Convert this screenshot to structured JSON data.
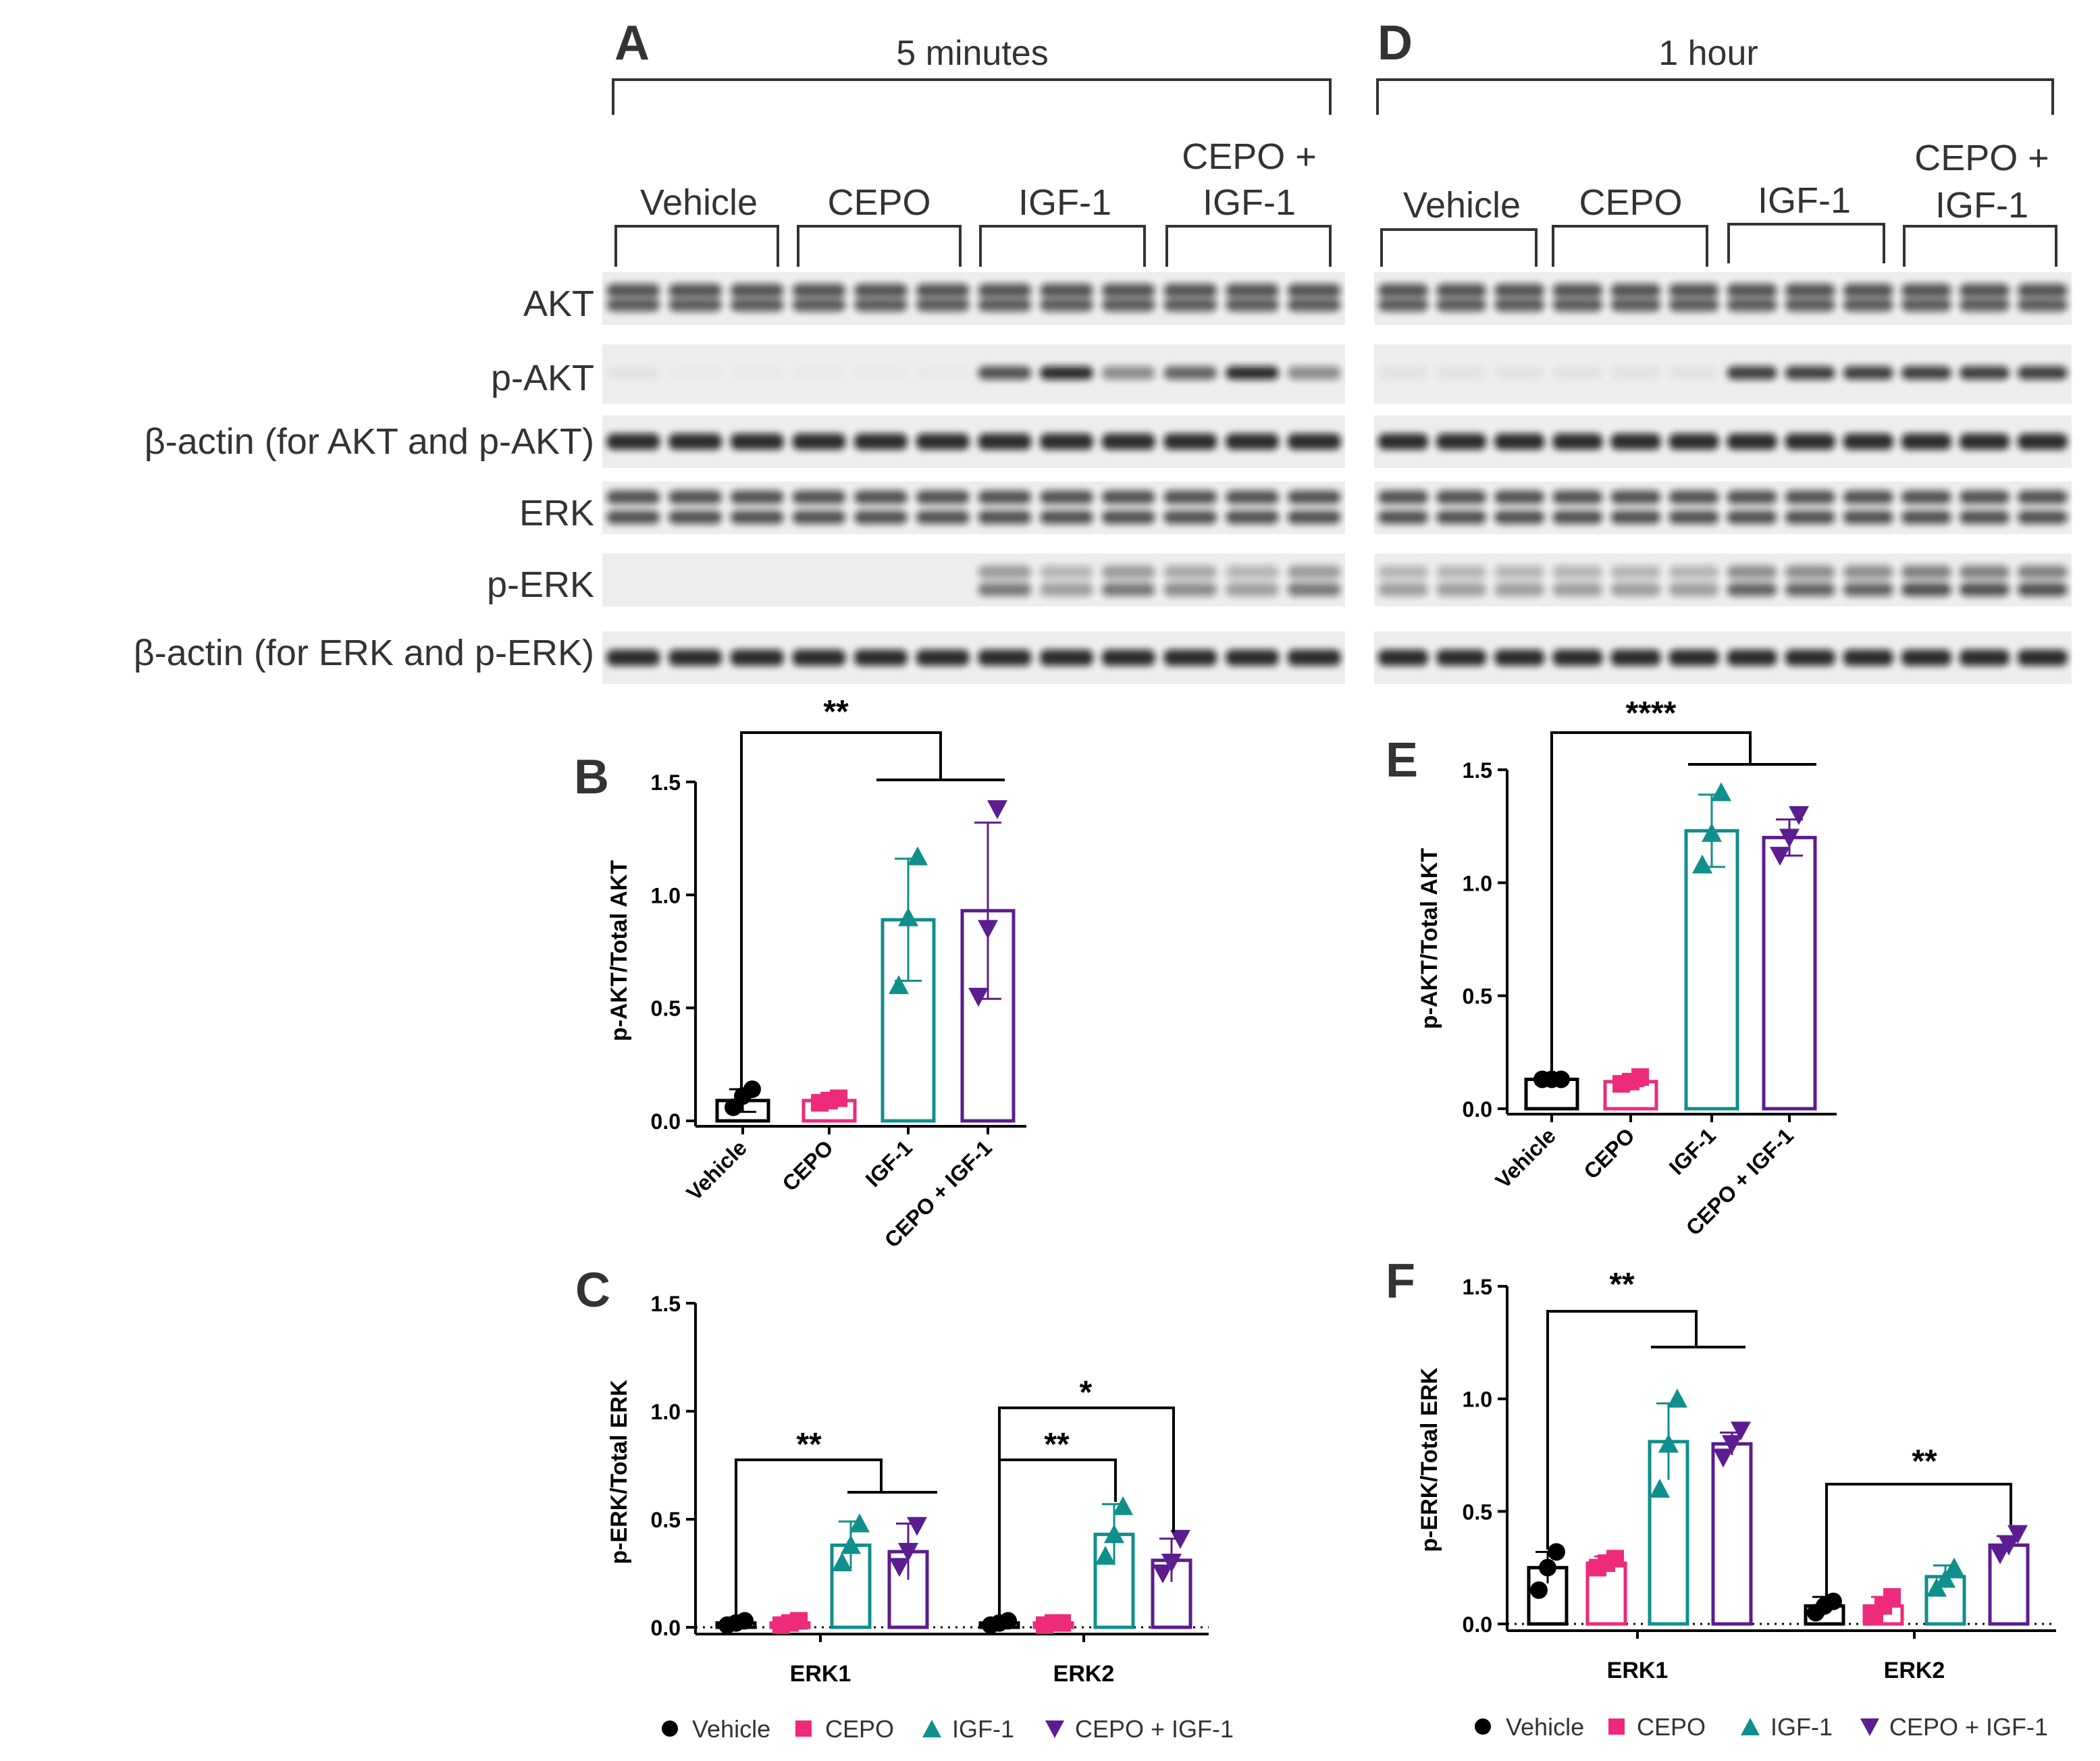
{
  "colors": {
    "vehicle": "#000000",
    "cepo": "#ee2a7b",
    "igf1": "#108f8c",
    "cepo_igf1": "#5b1d8f"
  },
  "panels": {
    "A": {
      "letter": "A",
      "time": "5 minutes",
      "groups": [
        "Vehicle",
        "CEPO",
        "IGF-1",
        "CEPO +",
        "IGF-1"
      ],
      "rows": [
        "AKT",
        "p-AKT",
        "β-actin (for AKT and p-AKT)",
        "ERK",
        "p-ERK",
        "β-actin (for ERK and p-ERK)"
      ],
      "pakt_levels": [
        0.05,
        0.02,
        0.02,
        0.02,
        0.02,
        0.02,
        0.8,
        1.0,
        0.5,
        0.7,
        1.0,
        0.5
      ],
      "perk_levels": [
        0.0,
        0.0,
        0.0,
        0.0,
        0.0,
        0.0,
        0.6,
        0.4,
        0.6,
        0.5,
        0.4,
        0.6
      ]
    },
    "D": {
      "letter": "D",
      "time": "1 hour",
      "groups": [
        "Vehicle",
        "CEPO",
        "IGF-1",
        "CEPO +",
        "IGF-1"
      ],
      "pakt_levels": [
        0.05,
        0.05,
        0.05,
        0.05,
        0.05,
        0.05,
        0.9,
        0.9,
        0.9,
        0.9,
        0.9,
        0.9
      ],
      "perk_levels": [
        0.4,
        0.4,
        0.4,
        0.4,
        0.4,
        0.4,
        0.7,
        0.7,
        0.7,
        0.8,
        0.8,
        0.8
      ]
    },
    "B": {
      "letter": "B",
      "ylabel": "p-AKT/Total AKT",
      "stars": "**"
    },
    "E": {
      "letter": "E",
      "ylabel": "p-AKT/Total AKT",
      "stars": "****"
    },
    "C": {
      "letter": "C",
      "ylabel": "p-ERK/Total ERK",
      "stars_erk1": "**",
      "stars_erk2_top": "*",
      "stars_erk2_igf": "**"
    },
    "F": {
      "letter": "F",
      "ylabel": "p-ERK/Total ERK",
      "stars_erk1": "**",
      "stars_erk2": "**"
    }
  },
  "legend": [
    "Vehicle",
    "CEPO",
    "IGF-1",
    "CEPO + IGF-1"
  ],
  "chart_data": [
    {
      "type": "bar",
      "panel": "B",
      "categories": [
        "Vehicle",
        "CEPO",
        "IGF-1",
        "CEPO + IGF-1"
      ],
      "values": [
        0.09,
        0.09,
        0.89,
        0.93
      ],
      "errors": [
        0.05,
        0.02,
        0.27,
        0.39
      ],
      "points": [
        [
          0.06,
          0.11,
          0.14
        ],
        [
          0.08,
          0.09,
          0.1
        ],
        [
          0.6,
          0.9,
          1.17
        ],
        [
          0.55,
          0.85,
          1.38
        ]
      ],
      "ylabel": "p-AKT/Total AKT",
      "ylim": [
        0,
        1.5
      ],
      "yticks": [
        "0.0",
        "0.5",
        "1.0",
        "1.5"
      ]
    },
    {
      "type": "bar",
      "panel": "E",
      "categories": [
        "Vehicle",
        "CEPO",
        "IGF-1",
        "CEPO + IGF-1"
      ],
      "values": [
        0.13,
        0.12,
        1.23,
        1.2
      ],
      "errors": [
        0.01,
        0.02,
        0.16,
        0.08
      ],
      "points": [
        [
          0.13,
          0.13,
          0.13
        ],
        [
          0.11,
          0.12,
          0.14
        ],
        [
          1.08,
          1.22,
          1.4
        ],
        [
          1.12,
          1.2,
          1.3
        ]
      ],
      "ylabel": "p-AKT/Total AKT",
      "ylim": [
        0,
        1.5
      ],
      "yticks": [
        "0.0",
        "0.5",
        "1.0",
        "1.5"
      ]
    },
    {
      "type": "bar",
      "panel": "C",
      "categories": [
        "ERK1",
        "ERK2"
      ],
      "series": [
        {
          "name": "Vehicle",
          "values": [
            0.02,
            0.02
          ],
          "errors": [
            0.01,
            0.01
          ],
          "points": [
            [
              0.01,
              0.02,
              0.03
            ],
            [
              0.01,
              0.02,
              0.03
            ]
          ]
        },
        {
          "name": "CEPO",
          "values": [
            0.02,
            0.02
          ],
          "errors": [
            0.01,
            0.01
          ],
          "points": [
            [
              0.01,
              0.02,
              0.03
            ],
            [
              0.01,
              0.02,
              0.02
            ]
          ]
        },
        {
          "name": "IGF-1",
          "values": [
            0.38,
            0.43
          ],
          "errors": [
            0.11,
            0.14
          ],
          "points": [
            [
              0.3,
              0.38,
              0.48
            ],
            [
              0.33,
              0.43,
              0.56
            ]
          ]
        },
        {
          "name": "CEPO + IGF-1",
          "values": [
            0.35,
            0.31
          ],
          "errors": [
            0.13,
            0.1
          ],
          "points": [
            [
              0.28,
              0.35,
              0.47
            ],
            [
              0.25,
              0.3,
              0.41
            ]
          ]
        }
      ],
      "ylabel": "p-ERK/Total ERK",
      "ylim": [
        0,
        1.5
      ],
      "yticks": [
        "0.0",
        "0.5",
        "1.0",
        "1.5"
      ]
    },
    {
      "type": "bar",
      "panel": "F",
      "categories": [
        "ERK1",
        "ERK2"
      ],
      "series": [
        {
          "name": "Vehicle",
          "values": [
            0.25,
            0.08
          ],
          "errors": [
            0.07,
            0.04
          ],
          "points": [
            [
              0.15,
              0.25,
              0.32
            ],
            [
              0.05,
              0.08,
              0.1
            ]
          ]
        },
        {
          "name": "CEPO",
          "values": [
            0.27,
            0.08
          ],
          "errors": [
            0.03,
            0.04
          ],
          "points": [
            [
              0.25,
              0.27,
              0.29
            ],
            [
              0.04,
              0.08,
              0.12
            ]
          ]
        },
        {
          "name": "IGF-1",
          "values": [
            0.81,
            0.21
          ],
          "errors": [
            0.17,
            0.05
          ],
          "points": [
            [
              0.6,
              0.8,
              1.0
            ],
            [
              0.16,
              0.2,
              0.25
            ]
          ]
        },
        {
          "name": "CEPO + IGF-1",
          "values": [
            0.8,
            0.35
          ],
          "errors": [
            0.05,
            0.04
          ],
          "points": [
            [
              0.74,
              0.8,
              0.86
            ],
            [
              0.31,
              0.35,
              0.4
            ]
          ]
        }
      ],
      "ylabel": "p-ERK/Total ERK",
      "ylim": [
        0,
        1.5
      ],
      "yticks": [
        "0.0",
        "0.5",
        "1.0",
        "1.5"
      ]
    }
  ]
}
